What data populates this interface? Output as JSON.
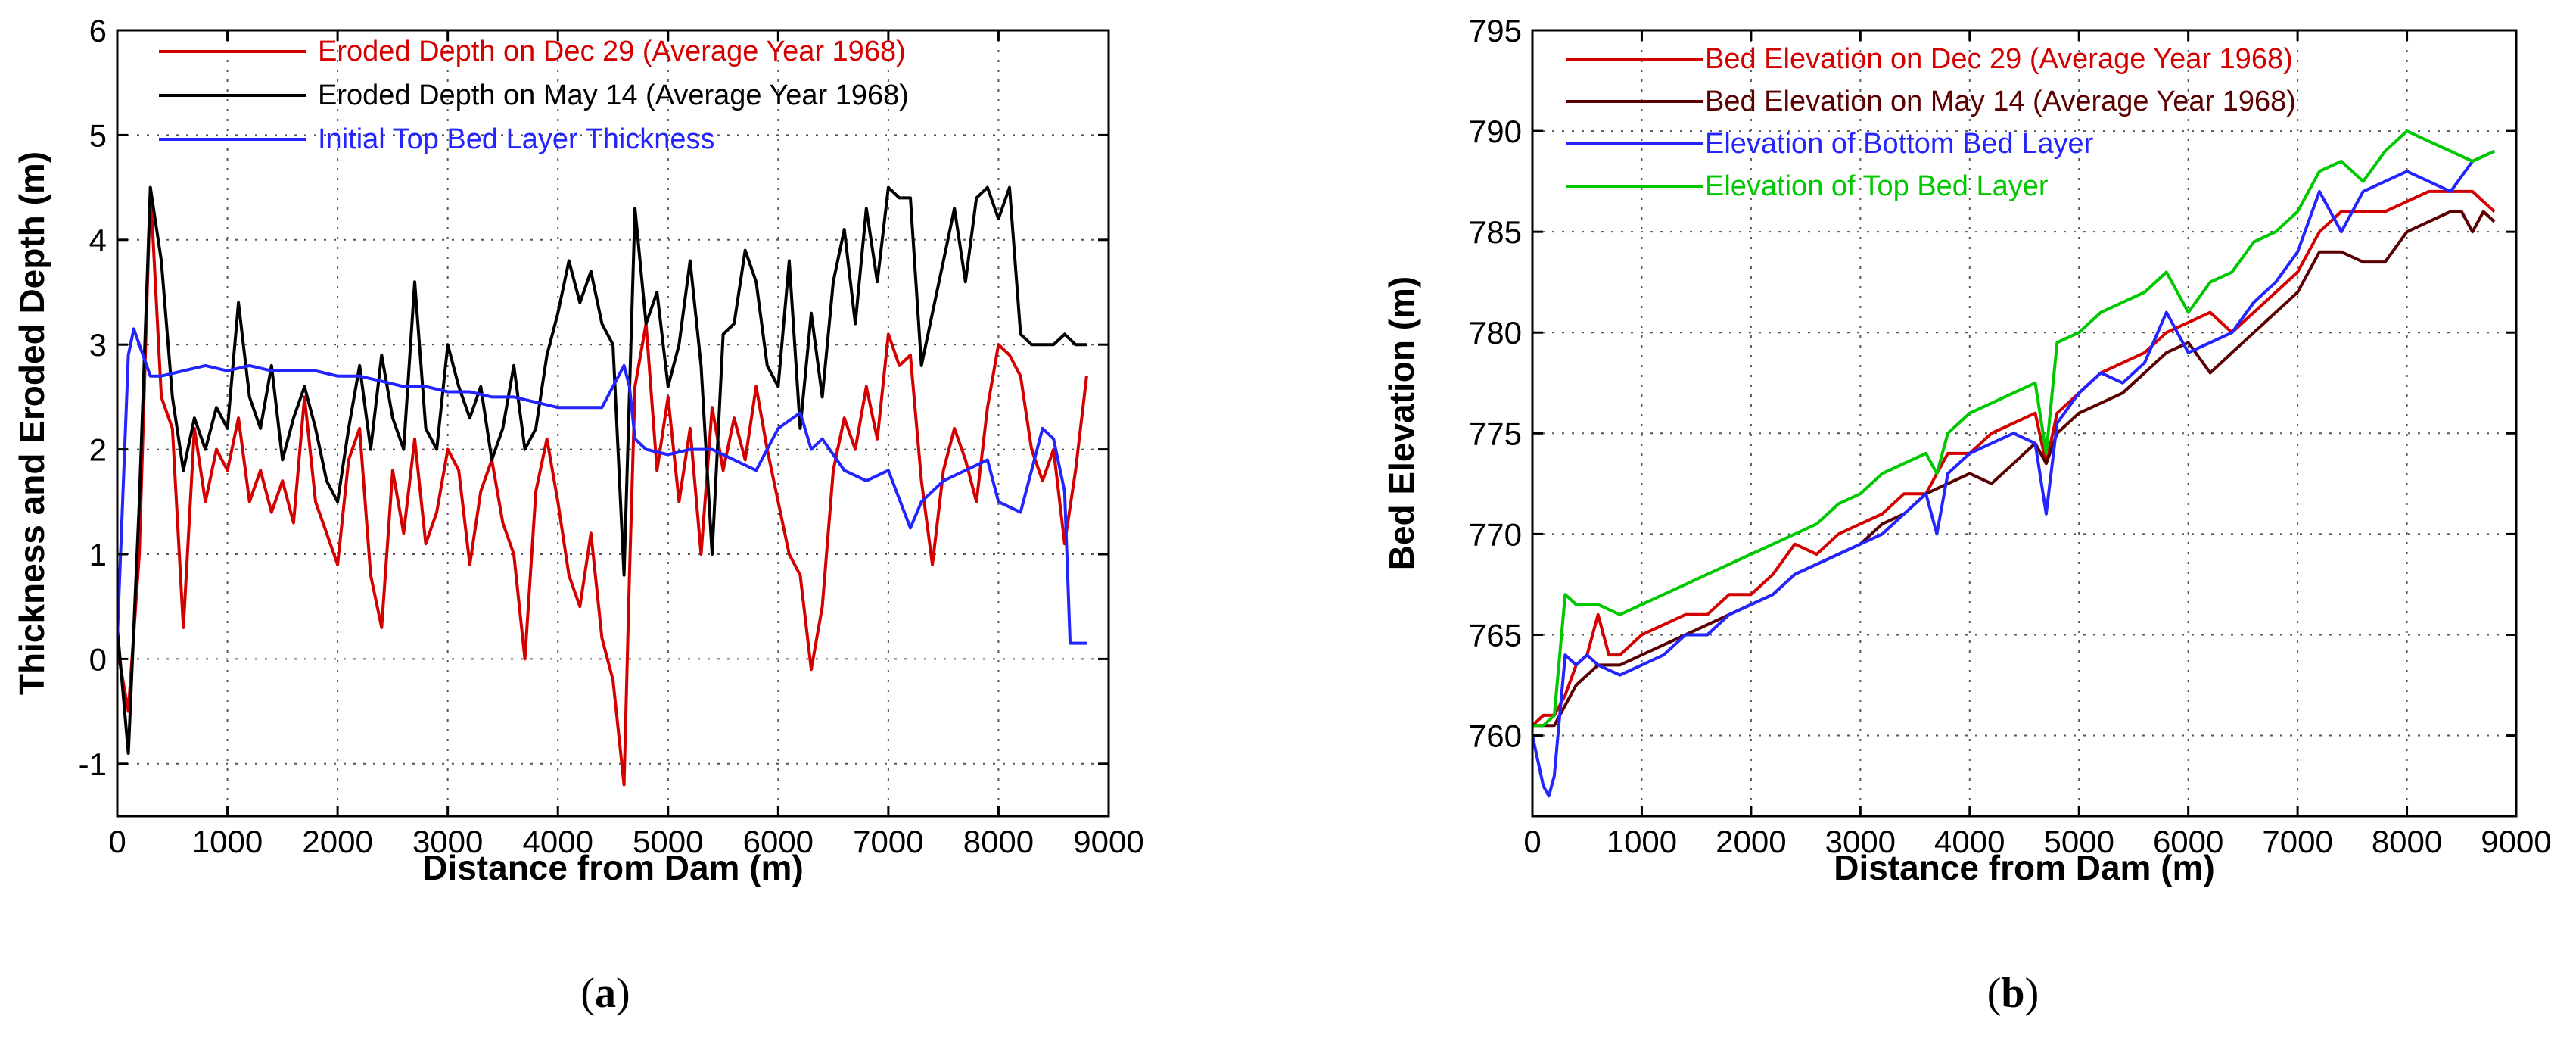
{
  "chart_data": [
    {
      "type": "line",
      "caption_letter": "a",
      "xlabel": "Distance from Dam (m)",
      "ylabel": "Thickness and Eroded Depth (m)",
      "xlim": [
        0,
        9000
      ],
      "ylim": [
        -1.5,
        6
      ],
      "xticks": [
        0,
        1000,
        2000,
        3000,
        4000,
        5000,
        6000,
        7000,
        8000,
        9000
      ],
      "yticks": [
        -1,
        0,
        1,
        2,
        3,
        4,
        5,
        6
      ],
      "grid": true,
      "legend_position": "top-left",
      "series": [
        {
          "name": "Eroded Depth on Dec 29 (Average Year 1968)",
          "color": "#d40000",
          "x": [
            0,
            100,
            200,
            300,
            400,
            500,
            600,
            700,
            800,
            900,
            1000,
            1100,
            1200,
            1300,
            1400,
            1500,
            1600,
            1700,
            1800,
            1900,
            2000,
            2100,
            2200,
            2300,
            2400,
            2500,
            2600,
            2700,
            2800,
            2900,
            3000,
            3100,
            3200,
            3300,
            3400,
            3500,
            3600,
            3700,
            3800,
            3900,
            4000,
            4100,
            4200,
            4300,
            4400,
            4500,
            4600,
            4650,
            4700,
            4800,
            4900,
            5000,
            5100,
            5200,
            5300,
            5400,
            5500,
            5600,
            5700,
            5800,
            5900,
            6000,
            6100,
            6200,
            6300,
            6400,
            6500,
            6600,
            6700,
            6800,
            6900,
            7000,
            7100,
            7200,
            7300,
            7400,
            7500,
            7600,
            7700,
            7800,
            7900,
            8000,
            8100,
            8200,
            8300,
            8400,
            8500,
            8600,
            8700,
            8800
          ],
          "y": [
            0.1,
            -0.5,
            1.0,
            4.5,
            2.5,
            2.2,
            0.3,
            2.2,
            1.5,
            2.0,
            1.8,
            2.3,
            1.5,
            1.8,
            1.4,
            1.7,
            1.3,
            2.5,
            1.5,
            1.2,
            0.9,
            1.9,
            2.2,
            0.8,
            0.3,
            1.8,
            1.2,
            2.1,
            1.1,
            1.4,
            2.0,
            1.8,
            0.9,
            1.6,
            1.9,
            1.3,
            1.0,
            0.0,
            1.6,
            2.1,
            1.5,
            0.8,
            0.5,
            1.2,
            0.2,
            -0.2,
            -1.2,
            0.8,
            2.6,
            3.2,
            1.8,
            2.5,
            1.5,
            2.2,
            1.0,
            2.4,
            1.8,
            2.3,
            1.9,
            2.6,
            2.0,
            1.5,
            1.0,
            0.8,
            -0.1,
            0.5,
            1.8,
            2.3,
            2.0,
            2.6,
            2.1,
            3.1,
            2.8,
            2.9,
            1.7,
            0.9,
            1.8,
            2.2,
            1.9,
            1.5,
            2.4,
            3.0,
            2.9,
            2.7,
            2.0,
            1.7,
            2.0,
            1.1,
            1.8,
            2.7
          ]
        },
        {
          "name": "Eroded Depth on May 14 (Average Year 1968)",
          "color": "#000000",
          "x": [
            0,
            100,
            200,
            300,
            400,
            500,
            600,
            700,
            800,
            900,
            1000,
            1100,
            1200,
            1300,
            1400,
            1500,
            1600,
            1700,
            1800,
            1900,
            2000,
            2100,
            2200,
            2300,
            2400,
            2500,
            2600,
            2700,
            2800,
            2900,
            3000,
            3100,
            3200,
            3300,
            3400,
            3500,
            3600,
            3700,
            3800,
            3900,
            4000,
            4100,
            4200,
            4300,
            4400,
            4500,
            4600,
            4700,
            4800,
            4900,
            5000,
            5100,
            5200,
            5300,
            5400,
            5500,
            5600,
            5700,
            5800,
            5900,
            6000,
            6100,
            6200,
            6300,
            6400,
            6500,
            6600,
            6700,
            6800,
            6900,
            7000,
            7100,
            7200,
            7300,
            7400,
            7500,
            7600,
            7700,
            7800,
            7900,
            8000,
            8100,
            8200,
            8300,
            8400,
            8500,
            8600,
            8700,
            8800
          ],
          "y": [
            0.3,
            -0.9,
            1.5,
            4.5,
            3.8,
            2.5,
            1.8,
            2.3,
            2.0,
            2.4,
            2.2,
            3.4,
            2.5,
            2.2,
            2.8,
            1.9,
            2.3,
            2.6,
            2.2,
            1.7,
            1.5,
            2.2,
            2.8,
            2.0,
            2.9,
            2.3,
            2.0,
            3.6,
            2.2,
            2.0,
            3.0,
            2.6,
            2.3,
            2.6,
            1.9,
            2.2,
            2.8,
            2.0,
            2.2,
            2.9,
            3.3,
            3.8,
            3.4,
            3.7,
            3.2,
            3.0,
            0.8,
            4.3,
            3.2,
            3.5,
            2.6,
            3.0,
            3.8,
            2.8,
            1.0,
            3.1,
            3.2,
            3.9,
            3.6,
            2.8,
            2.6,
            3.8,
            2.2,
            3.3,
            2.5,
            3.6,
            4.1,
            3.2,
            4.3,
            3.6,
            4.5,
            4.4,
            4.4,
            2.8,
            3.3,
            3.8,
            4.3,
            3.6,
            4.4,
            4.5,
            4.2,
            4.5,
            3.1,
            3.0,
            3.0,
            3.0,
            3.1,
            3.0,
            3.0
          ]
        },
        {
          "name": "Initial Top Bed Layer Thickness",
          "color": "#2424ff",
          "x": [
            0,
            100,
            150,
            200,
            300,
            400,
            600,
            800,
            1000,
            1200,
            1400,
            1600,
            1800,
            2000,
            2200,
            2400,
            2600,
            2800,
            3000,
            3200,
            3400,
            3600,
            3800,
            4000,
            4200,
            4400,
            4600,
            4650,
            4700,
            4800,
            5000,
            5200,
            5400,
            5600,
            5800,
            6000,
            6200,
            6300,
            6400,
            6600,
            6800,
            7000,
            7200,
            7300,
            7500,
            7700,
            7900,
            8000,
            8200,
            8400,
            8500,
            8600,
            8650,
            8700,
            8800
          ],
          "y": [
            0.2,
            2.9,
            3.15,
            3.0,
            2.7,
            2.7,
            2.75,
            2.8,
            2.75,
            2.8,
            2.75,
            2.75,
            2.75,
            2.7,
            2.7,
            2.65,
            2.6,
            2.6,
            2.55,
            2.55,
            2.5,
            2.5,
            2.45,
            2.4,
            2.4,
            2.4,
            2.8,
            2.6,
            2.1,
            2.0,
            1.95,
            2.0,
            2.0,
            1.9,
            1.8,
            2.2,
            2.35,
            2.0,
            2.1,
            1.8,
            1.7,
            1.8,
            1.25,
            1.5,
            1.7,
            1.8,
            1.9,
            1.5,
            1.4,
            2.2,
            2.1,
            1.6,
            0.15,
            0.15,
            0.15
          ]
        }
      ]
    },
    {
      "type": "line",
      "caption_letter": "b",
      "xlabel": "Distance from Dam (m)",
      "ylabel": "Bed Elevation (m)",
      "xlim": [
        0,
        9000
      ],
      "ylim": [
        756,
        795
      ],
      "xticks": [
        0,
        1000,
        2000,
        3000,
        4000,
        5000,
        6000,
        7000,
        8000,
        9000
      ],
      "yticks": [
        760,
        765,
        770,
        775,
        780,
        785,
        790,
        795
      ],
      "grid": true,
      "legend_position": "top-left",
      "series": [
        {
          "name": "Bed Elevation on Dec 29 (Average Year 1968)",
          "color": "#d40000",
          "x": [
            0,
            100,
            200,
            300,
            400,
            500,
            600,
            700,
            800,
            1000,
            1200,
            1400,
            1600,
            1800,
            2000,
            2200,
            2400,
            2600,
            2800,
            3000,
            3200,
            3400,
            3600,
            3700,
            3800,
            4000,
            4200,
            4400,
            4600,
            4700,
            4800,
            5000,
            5200,
            5400,
            5600,
            5800,
            6000,
            6200,
            6400,
            6600,
            6800,
            7000,
            7200,
            7400,
            7600,
            7800,
            8000,
            8200,
            8400,
            8600,
            8800
          ],
          "y": [
            760.5,
            761.0,
            761.0,
            762.0,
            763.5,
            764.0,
            766.0,
            764.0,
            764.0,
            765.0,
            765.5,
            766.0,
            766.0,
            767.0,
            767.0,
            768.0,
            769.5,
            769.0,
            770.0,
            770.5,
            771.0,
            772.0,
            772.0,
            773.0,
            774.0,
            774.0,
            775.0,
            775.5,
            776.0,
            773.5,
            776.0,
            777.0,
            778.0,
            778.5,
            779.0,
            780.0,
            780.5,
            781.0,
            780.0,
            781.0,
            782.0,
            783.0,
            785.0,
            786.0,
            786.0,
            786.0,
            786.5,
            787.0,
            787.0,
            787.0,
            786.0
          ]
        },
        {
          "name": "Bed Elevation on May 14 (Average Year 1968)",
          "color": "#5a0000",
          "x": [
            0,
            100,
            200,
            300,
            400,
            500,
            600,
            700,
            800,
            1000,
            1200,
            1400,
            1600,
            1800,
            2000,
            2200,
            2400,
            2600,
            2800,
            3000,
            3200,
            3400,
            3600,
            3800,
            4000,
            4200,
            4400,
            4600,
            4700,
            4800,
            5000,
            5200,
            5400,
            5600,
            5800,
            6000,
            6200,
            6400,
            6600,
            6800,
            7000,
            7200,
            7400,
            7600,
            7800,
            8000,
            8200,
            8400,
            8500,
            8600,
            8700,
            8800
          ],
          "y": [
            760.5,
            760.5,
            760.5,
            761.5,
            762.5,
            763.0,
            763.5,
            763.5,
            763.5,
            764.0,
            764.5,
            765.0,
            765.5,
            766.0,
            766.5,
            767.0,
            768.0,
            768.5,
            769.0,
            769.5,
            770.5,
            771.0,
            772.0,
            772.5,
            773.0,
            772.5,
            773.5,
            774.5,
            773.5,
            775.0,
            776.0,
            776.5,
            777.0,
            778.0,
            779.0,
            779.5,
            778.0,
            779.0,
            780.0,
            781.0,
            782.0,
            784.0,
            784.0,
            783.5,
            783.5,
            785.0,
            785.5,
            786.0,
            786.0,
            785.0,
            786.0,
            785.5
          ]
        },
        {
          "name": "Elevation of Bottom Bed Layer",
          "color": "#2424ff",
          "x": [
            0,
            100,
            150,
            200,
            300,
            400,
            500,
            600,
            800,
            1000,
            1200,
            1400,
            1600,
            1800,
            2000,
            2200,
            2400,
            2600,
            2800,
            3000,
            3200,
            3400,
            3600,
            3700,
            3800,
            4000,
            4200,
            4400,
            4600,
            4700,
            4800,
            5000,
            5200,
            5400,
            5600,
            5800,
            6000,
            6200,
            6400,
            6600,
            6800,
            7000,
            7200,
            7400,
            7600,
            7800,
            8000,
            8200,
            8400,
            8600,
            8800
          ],
          "y": [
            760.0,
            757.5,
            757.0,
            758.0,
            764.0,
            763.5,
            764.0,
            763.5,
            763.0,
            763.5,
            764.0,
            765.0,
            765.0,
            766.0,
            766.5,
            767.0,
            768.0,
            768.5,
            769.0,
            769.5,
            770.0,
            771.0,
            772.0,
            770.0,
            773.0,
            774.0,
            774.5,
            775.0,
            774.5,
            771.0,
            775.5,
            777.0,
            778.0,
            777.5,
            778.5,
            781.0,
            779.0,
            779.5,
            780.0,
            781.5,
            782.5,
            784.0,
            787.0,
            785.0,
            787.0,
            787.5,
            788.0,
            787.5,
            787.0,
            788.5,
            789.0
          ]
        },
        {
          "name": "Elevation of Top Bed Layer",
          "color": "#00c800",
          "x": [
            0,
            100,
            200,
            300,
            400,
            600,
            800,
            1000,
            1200,
            1400,
            1600,
            1800,
            2000,
            2200,
            2400,
            2600,
            2800,
            3000,
            3200,
            3400,
            3600,
            3700,
            3800,
            4000,
            4200,
            4400,
            4600,
            4700,
            4800,
            5000,
            5200,
            5400,
            5600,
            5800,
            6000,
            6200,
            6400,
            6600,
            6800,
            7000,
            7200,
            7400,
            7600,
            7800,
            8000,
            8200,
            8400,
            8600,
            8800
          ],
          "y": [
            760.5,
            760.5,
            761.0,
            767.0,
            766.5,
            766.5,
            766.0,
            766.5,
            767.0,
            767.5,
            768.0,
            768.5,
            769.0,
            769.5,
            770.0,
            770.5,
            771.5,
            772.0,
            773.0,
            773.5,
            774.0,
            773.0,
            775.0,
            776.0,
            776.5,
            777.0,
            777.5,
            774.0,
            779.5,
            780.0,
            781.0,
            781.5,
            782.0,
            783.0,
            781.0,
            782.5,
            783.0,
            784.5,
            785.0,
            786.0,
            788.0,
            788.5,
            787.5,
            789.0,
            790.0,
            789.5,
            789.0,
            788.5,
            789.0
          ]
        }
      ]
    }
  ]
}
